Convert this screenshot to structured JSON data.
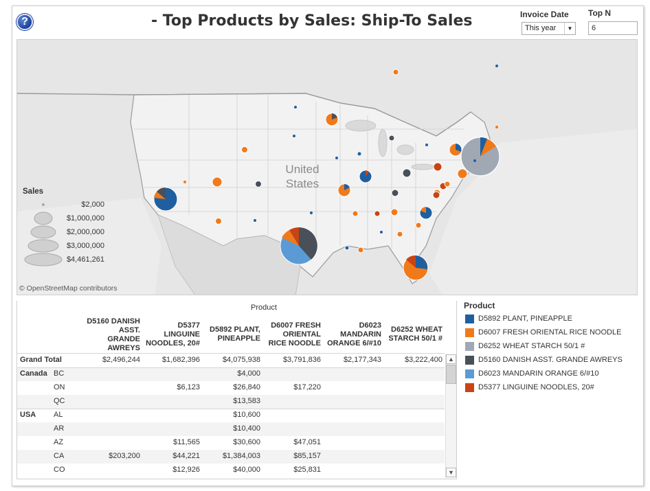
{
  "header": {
    "title": "- Top Products by Sales: Ship-To Sales",
    "help_glyph": "?"
  },
  "filters": {
    "invoice_date_label": "Invoice Date",
    "invoice_date_value": "This year",
    "topn_label": "Top N",
    "topn_value": "6"
  },
  "map": {
    "country_label_1": "United",
    "country_label_2": "States",
    "attribution": "© OpenStreetMap contributors"
  },
  "sales_legend": {
    "title": "Sales",
    "items": [
      "$2,000",
      "$1,000,000",
      "$2,000,000",
      "$3,000,000",
      "$4,461,261"
    ]
  },
  "colors": {
    "D5892": "#1f5fa0",
    "D6007": "#f07a1a",
    "D6252": "#a0a8b4",
    "D5160": "#4a505a",
    "D6023": "#5b9bd5",
    "D5377": "#c84414"
  },
  "table": {
    "product_header": "Product",
    "columns": [
      {
        "line1": "D5160  DANISH",
        "line2": "ASST.",
        "line3": "GRANDE",
        "line4": "AWREYS"
      },
      {
        "line1": "D5377",
        "line2": "LINGUINE",
        "line3": "NOODLES, 20#",
        "line4": ""
      },
      {
        "line1": "D5892  PLANT,",
        "line2": "PINEAPPLE",
        "line3": "",
        "line4": ""
      },
      {
        "line1": "D6007  FRESH",
        "line2": "ORIENTAL",
        "line3": "RICE NOODLE",
        "line4": ""
      },
      {
        "line1": "D6023",
        "line2": "MANDARIN",
        "line3": "ORANGE 6/#10",
        "line4": ""
      },
      {
        "line1": "D6252  WHEAT",
        "line2": "STARCH 50/1 #",
        "line3": "",
        "line4": ""
      }
    ],
    "rows": [
      {
        "country": "Grand Total",
        "state": "",
        "values": [
          "$2,496,244",
          "$1,682,396",
          "$4,075,938",
          "$3,791,836",
          "$2,177,343",
          "$3,222,400"
        ]
      },
      {
        "country": "Canada",
        "state": "BC",
        "values": [
          "",
          "",
          "$4,000",
          "",
          "",
          ""
        ]
      },
      {
        "country": "",
        "state": "ON",
        "values": [
          "",
          "$6,123",
          "$26,840",
          "$17,220",
          "",
          ""
        ]
      },
      {
        "country": "",
        "state": "QC",
        "values": [
          "",
          "",
          "$13,583",
          "",
          "",
          ""
        ]
      },
      {
        "country": "USA",
        "state": "AL",
        "values": [
          "",
          "",
          "$10,600",
          "",
          "",
          ""
        ]
      },
      {
        "country": "",
        "state": "AR",
        "values": [
          "",
          "",
          "$10,400",
          "",
          "",
          ""
        ]
      },
      {
        "country": "",
        "state": "AZ",
        "values": [
          "",
          "$11,565",
          "$30,600",
          "$47,051",
          "",
          ""
        ]
      },
      {
        "country": "",
        "state": "CA",
        "values": [
          "$203,200",
          "$44,221",
          "$1,384,003",
          "$85,157",
          "",
          ""
        ]
      },
      {
        "country": "",
        "state": "CO",
        "values": [
          "",
          "$12,926",
          "$40,000",
          "$25,831",
          "",
          ""
        ]
      }
    ]
  },
  "legend": {
    "title": "Product",
    "items": [
      {
        "code": "D5892",
        "label": "D5892  PLANT, PINEAPPLE",
        "color": "#1f5fa0"
      },
      {
        "code": "D6007",
        "label": "D6007  FRESH ORIENTAL RICE NOODLE",
        "color": "#f07a1a"
      },
      {
        "code": "D6252",
        "label": "D6252  WHEAT STARCH 50/1 #",
        "color": "#a0a8b4"
      },
      {
        "code": "D5160",
        "label": "D5160  DANISH ASST. GRANDE AWREYS",
        "color": "#4a505a"
      },
      {
        "code": "D6023",
        "label": "D6023  MANDARIN ORANGE 6/#10",
        "color": "#5b9bd5"
      },
      {
        "code": "D5377",
        "label": "D5377  LINGUINE NOODLES, 20#",
        "color": "#c84414"
      }
    ]
  }
}
